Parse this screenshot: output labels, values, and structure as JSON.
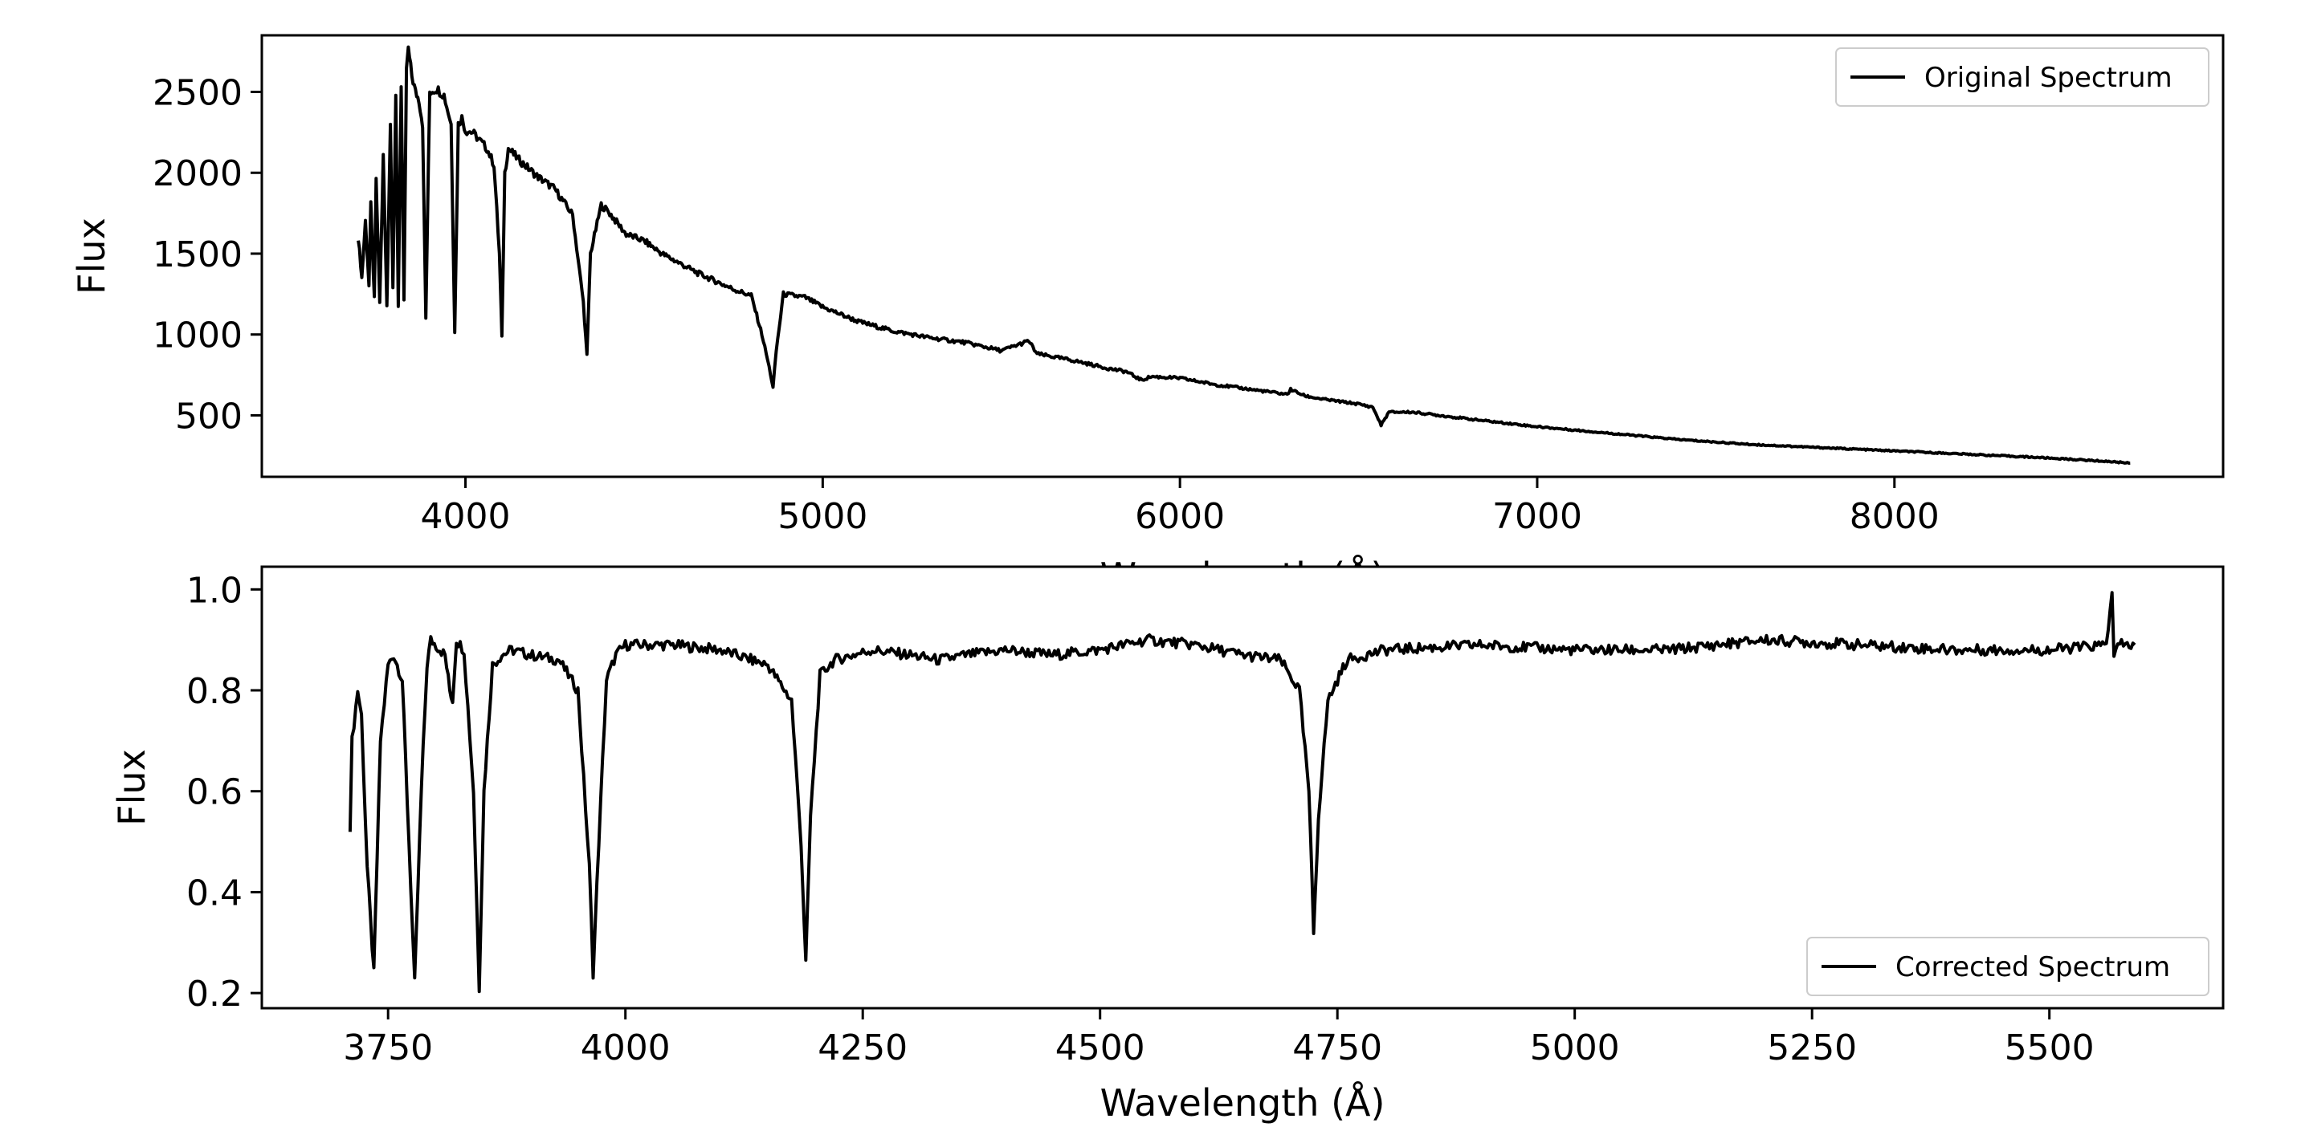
{
  "chart_data": [
    {
      "type": "line",
      "xlabel": "Wavelength (Å)",
      "ylabel": "Flux",
      "xlim": [
        3430,
        8920
      ],
      "ylim": [
        120,
        2850
      ],
      "xticks": [
        4000,
        5000,
        6000,
        7000,
        8000
      ],
      "yticks": [
        500,
        1000,
        1500,
        2000,
        2500
      ],
      "grid": false,
      "legend": "top-right",
      "series": [
        {
          "name": "Original Spectrum",
          "color": "#000000",
          "x": [
            3700,
            3710,
            3720,
            3730,
            3735,
            3745,
            3750,
            3760,
            3770,
            3780,
            3790,
            3797,
            3805,
            3812,
            3820,
            3828,
            3835,
            3840,
            3850,
            3860,
            3870,
            3880,
            3889,
            3900,
            3920,
            3940,
            3960,
            3970,
            3980,
            3990,
            4000,
            4020,
            4040,
            4060,
            4080,
            4095,
            4102,
            4110,
            4120,
            4150,
            4200,
            4250,
            4300,
            4330,
            4340,
            4350,
            4380,
            4400,
            4450,
            4500,
            4550,
            4600,
            4650,
            4700,
            4750,
            4800,
            4830,
            4850,
            4861,
            4870,
            4890,
            4950,
            5000,
            5100,
            5200,
            5300,
            5400,
            5500,
            5577,
            5600,
            5700,
            5800,
            5850,
            5890,
            5895,
            5920,
            6000,
            6100,
            6200,
            6300,
            6310,
            6350,
            6400,
            6500,
            6540,
            6563,
            6585,
            6650,
            6800,
            7000,
            7200,
            7400,
            7600,
            7800,
            8000,
            8200,
            8400,
            8600,
            8660
          ],
          "values": [
            1600,
            1350,
            1700,
            1300,
            1800,
            1220,
            1950,
            1200,
            2100,
            1180,
            2300,
            1300,
            2450,
            1180,
            2550,
            1200,
            2650,
            2760,
            2600,
            2500,
            2450,
            2300,
            1100,
            2500,
            2520,
            2480,
            2300,
            1020,
            2300,
            2340,
            2260,
            2250,
            2200,
            2150,
            2050,
            1500,
            980,
            2000,
            2150,
            2080,
            1980,
            1900,
            1740,
            1200,
            870,
            1500,
            1800,
            1760,
            1620,
            1580,
            1500,
            1440,
            1380,
            1330,
            1280,
            1240,
            1000,
            800,
            670,
            900,
            1250,
            1230,
            1170,
            1080,
            1020,
            980,
            950,
            900,
            960,
            880,
            840,
            790,
            770,
            720,
            720,
            740,
            730,
            690,
            660,
            630,
            660,
            620,
            600,
            570,
            550,
            440,
            520,
            520,
            480,
            430,
            390,
            350,
            320,
            300,
            280,
            260,
            240,
            215,
            205
          ]
        }
      ]
    },
    {
      "type": "line",
      "xlabel": "Wavelength (Å)",
      "ylabel": "Flux",
      "xlim": [
        3617,
        5683
      ],
      "ylim": [
        0.17,
        1.045
      ],
      "xticks": [
        3750,
        4000,
        4250,
        4500,
        4750,
        5000,
        5250,
        5500
      ],
      "yticks": [
        0.2,
        0.4,
        0.6,
        0.8,
        1.0
      ],
      "grid": false,
      "legend": "bottom-right",
      "series": [
        {
          "name": "Corrected Spectrum",
          "color": "#000000",
          "x": [
            3710,
            3712,
            3718,
            3722,
            3728,
            3735,
            3742,
            3750,
            3756,
            3765,
            3772,
            3778,
            3785,
            3791,
            3795,
            3810,
            3815,
            3818,
            3822,
            3830,
            3840,
            3846,
            3851,
            3860,
            3870,
            3880,
            3900,
            3930,
            3950,
            3962,
            3966,
            3972,
            3980,
            3990,
            4000,
            4050,
            4100,
            4150,
            4175,
            4185,
            4190,
            4195,
            4205,
            4220,
            4260,
            4300,
            4330,
            4360,
            4400,
            4450,
            4500,
            4550,
            4600,
            4650,
            4690,
            4710,
            4720,
            4725,
            4730,
            4740,
            4760,
            4780,
            4800,
            4900,
            5000,
            5100,
            5200,
            5300,
            5400,
            5500,
            5560,
            5566,
            5568,
            5572,
            5590
          ],
          "values": [
            0.53,
            0.7,
            0.8,
            0.75,
            0.45,
            0.24,
            0.7,
            0.85,
            0.87,
            0.82,
            0.5,
            0.22,
            0.6,
            0.85,
            0.9,
            0.87,
            0.8,
            0.78,
            0.9,
            0.88,
            0.6,
            0.21,
            0.6,
            0.85,
            0.87,
            0.88,
            0.87,
            0.86,
            0.8,
            0.45,
            0.24,
            0.5,
            0.82,
            0.87,
            0.89,
            0.89,
            0.88,
            0.85,
            0.78,
            0.5,
            0.26,
            0.55,
            0.83,
            0.86,
            0.88,
            0.87,
            0.86,
            0.87,
            0.88,
            0.87,
            0.88,
            0.9,
            0.89,
            0.87,
            0.86,
            0.8,
            0.6,
            0.32,
            0.55,
            0.78,
            0.86,
            0.87,
            0.88,
            0.89,
            0.88,
            0.88,
            0.9,
            0.89,
            0.88,
            0.88,
            0.89,
            1.0,
            0.86,
            0.89,
            0.89
          ]
        }
      ]
    }
  ]
}
